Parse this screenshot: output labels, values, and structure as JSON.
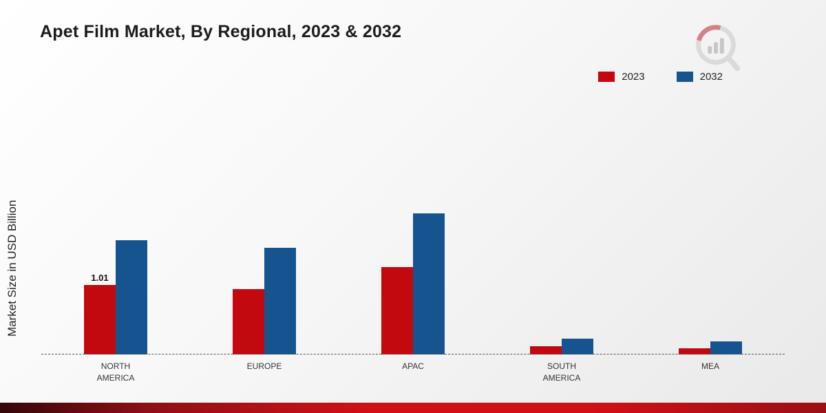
{
  "title": "Apet Film Market, By Regional, 2023 & 2032",
  "ylabel": "Market Size in USD Billion",
  "colors": {
    "red": "#c2090f",
    "blue": "#15548e"
  },
  "legend": [
    {
      "label": "2023",
      "color": "#c2090f"
    },
    {
      "label": "2032",
      "color": "#15548e"
    }
  ],
  "chart_data": {
    "type": "bar",
    "title": "Apet Film Market, By Regional, 2023 & 2032",
    "ylabel": "Market Size in USD Billion",
    "xlabel": "",
    "categories": [
      "NORTH AMERICA",
      "EUROPE",
      "APAC",
      "SOUTH AMERICA",
      "MEA"
    ],
    "series": [
      {
        "name": "2023",
        "color": "#c2090f",
        "values": [
          1.01,
          0.95,
          1.27,
          0.12,
          0.09
        ],
        "labels": [
          "1.01",
          "",
          "",
          "",
          ""
        ]
      },
      {
        "name": "2032",
        "color": "#15548e",
        "values": [
          1.66,
          1.55,
          2.05,
          0.23,
          0.19
        ],
        "labels": [
          "",
          "",
          "",
          "",
          ""
        ]
      }
    ],
    "ylim": [
      0,
      2.2
    ],
    "pixels_per_unit": 100,
    "grid": false,
    "baseline_style": "dashed",
    "legend_position": "top-right"
  }
}
